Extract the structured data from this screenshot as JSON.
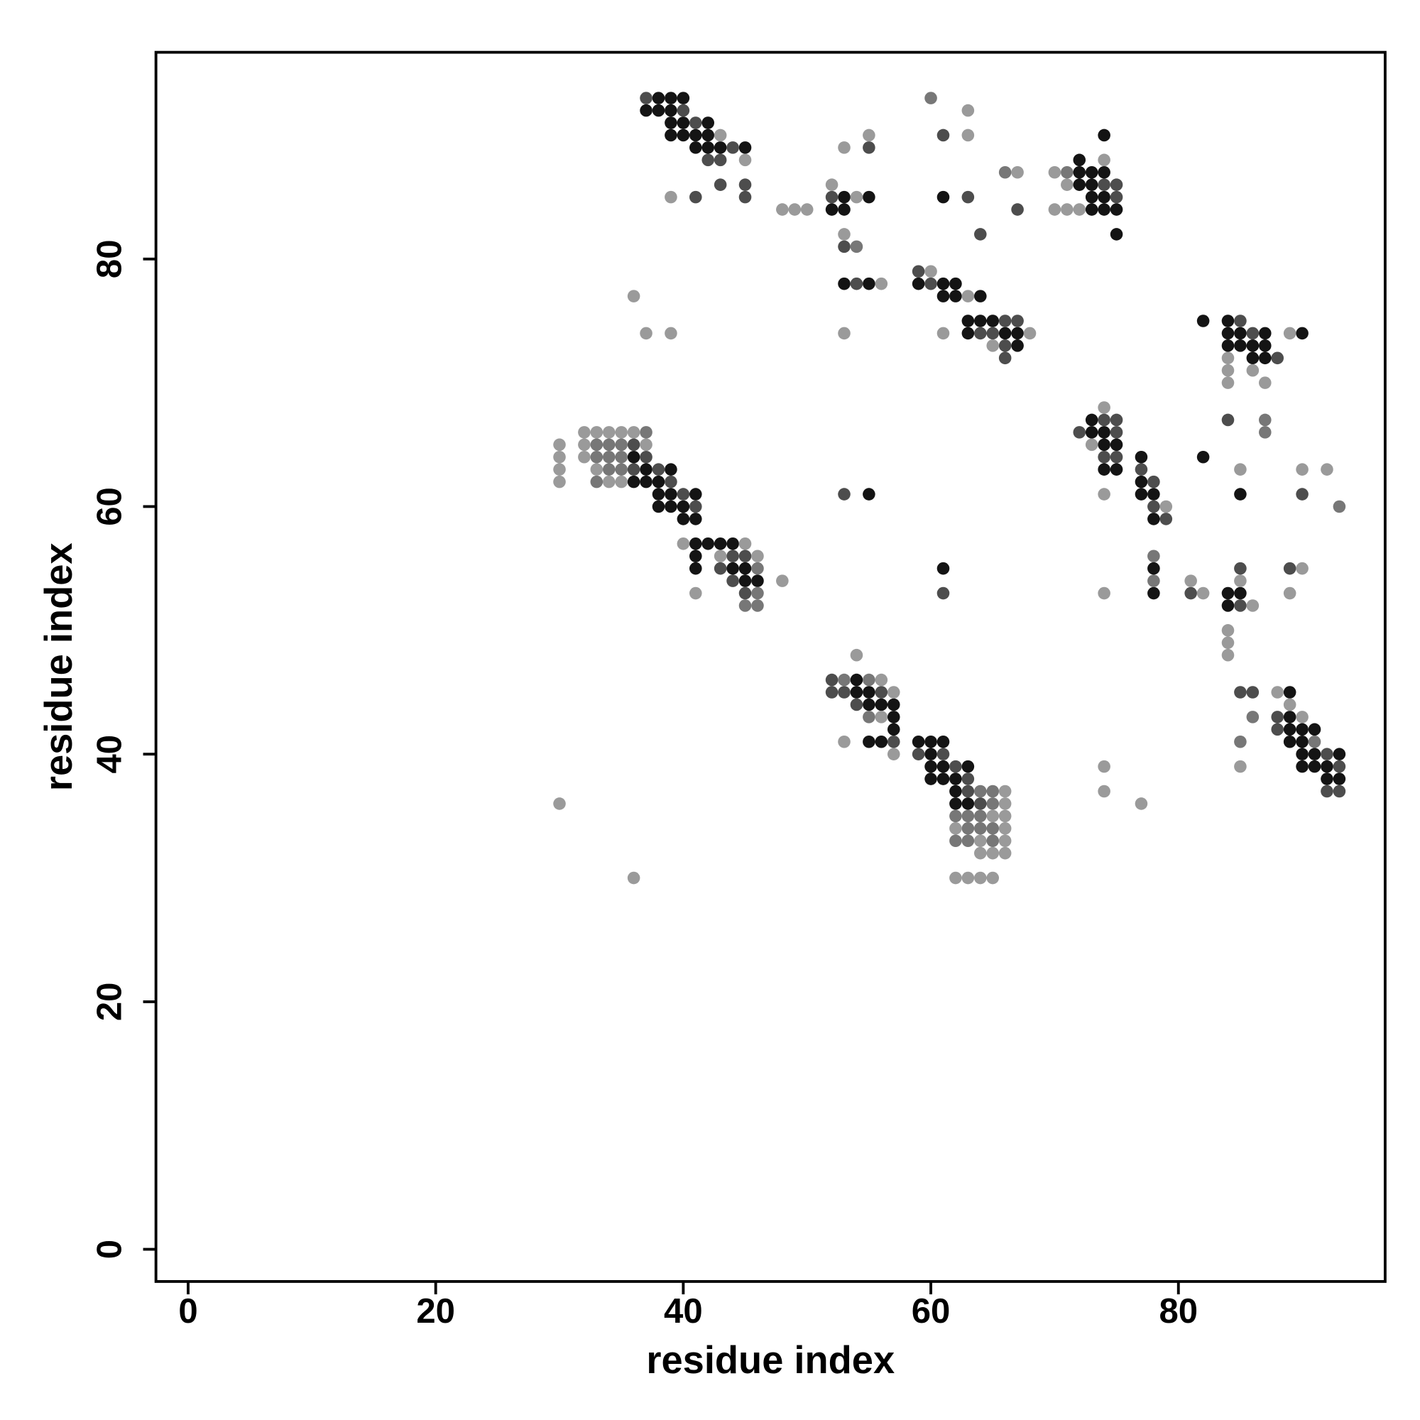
{
  "chart_data": {
    "type": "scatter",
    "xlabel": "residue index",
    "ylabel": "residue index",
    "xlim": [
      -2.6,
      96.7
    ],
    "ylim": [
      -2.6,
      96.7
    ],
    "xticks": [
      0,
      20,
      40,
      60,
      80
    ],
    "yticks": [
      0,
      20,
      40,
      60,
      80
    ],
    "grid": false,
    "series": [
      {
        "color": "#141414",
        "x": [
          38,
          39,
          40,
          37,
          38,
          39,
          39,
          40,
          42,
          39,
          40,
          41,
          42,
          41,
          42,
          43,
          45,
          52,
          53,
          53,
          55,
          53,
          55,
          61,
          59,
          61,
          62,
          61,
          62,
          64,
          63,
          64,
          65,
          63,
          66,
          67,
          67,
          72,
          74,
          72,
          73,
          74,
          72,
          73,
          73,
          74,
          73,
          74,
          75,
          75,
          82,
          84,
          84,
          85,
          87,
          90,
          84,
          85,
          86,
          87,
          86,
          87,
          82,
          85,
          73,
          73,
          74,
          74,
          75,
          77,
          74,
          75,
          77,
          77,
          78,
          78,
          78,
          78,
          84,
          85,
          84,
          36,
          37,
          39,
          36,
          37,
          38,
          38,
          39,
          41,
          38,
          39,
          40,
          40,
          41,
          41,
          42,
          43,
          44,
          41,
          41,
          44,
          45,
          45,
          46,
          55,
          61,
          54,
          54,
          55,
          55,
          56,
          57,
          57,
          57,
          55,
          56,
          59,
          60,
          61,
          60,
          60,
          61,
          63,
          60,
          61,
          62,
          62,
          62,
          63,
          89,
          89,
          89,
          90,
          91,
          89,
          90,
          90,
          91,
          93,
          90,
          91,
          92,
          92,
          93
        ],
        "values": [
          93,
          93,
          93,
          92,
          92,
          92,
          91,
          91,
          91,
          90,
          90,
          90,
          90,
          89,
          89,
          89,
          89,
          84,
          84,
          85,
          85,
          78,
          78,
          85,
          78,
          78,
          78,
          77,
          77,
          77,
          75,
          75,
          75,
          74,
          74,
          74,
          73,
          88,
          90,
          87,
          87,
          87,
          86,
          86,
          85,
          85,
          84,
          84,
          84,
          82,
          75,
          75,
          74,
          74,
          74,
          74,
          73,
          73,
          73,
          73,
          72,
          72,
          64,
          61,
          67,
          66,
          66,
          65,
          65,
          64,
          63,
          63,
          62,
          61,
          61,
          59,
          55,
          53,
          53,
          53,
          52,
          64,
          63,
          63,
          62,
          62,
          62,
          61,
          61,
          61,
          60,
          60,
          60,
          59,
          59,
          57,
          57,
          57,
          57,
          56,
          55,
          55,
          55,
          54,
          54,
          61,
          55,
          46,
          45,
          45,
          44,
          44,
          44,
          43,
          42,
          41,
          41,
          41,
          41,
          41,
          40,
          39,
          39,
          39,
          38,
          38,
          38,
          37,
          36,
          36,
          45,
          43,
          42,
          42,
          42,
          41,
          41,
          40,
          40,
          40,
          39,
          39,
          39,
          38,
          38
        ]
      },
      {
        "color": "#4d4d4d",
        "x": [
          37,
          40,
          41,
          44,
          42,
          43,
          43,
          45,
          41,
          45,
          52,
          55,
          53,
          54,
          61,
          63,
          64,
          67,
          59,
          60,
          66,
          67,
          64,
          65,
          66,
          66,
          74,
          75,
          75,
          85,
          86,
          88,
          84,
          90,
          74,
          75,
          72,
          75,
          74,
          75,
          77,
          78,
          78,
          79,
          81,
          85,
          89,
          85,
          36,
          37,
          36,
          38,
          39,
          40,
          41,
          44,
          45,
          43,
          44,
          45,
          53,
          61,
          52,
          52,
          53,
          56,
          54,
          57,
          59,
          61,
          62,
          63,
          63,
          64,
          85,
          86,
          88,
          88,
          92,
          93,
          92,
          93
        ],
        "values": [
          93,
          92,
          91,
          89,
          88,
          88,
          86,
          86,
          85,
          85,
          85,
          89,
          81,
          78,
          90,
          85,
          82,
          84,
          79,
          78,
          75,
          75,
          74,
          74,
          73,
          72,
          86,
          86,
          85,
          75,
          74,
          72,
          67,
          61,
          67,
          67,
          66,
          66,
          64,
          64,
          63,
          62,
          60,
          59,
          53,
          55,
          55,
          52,
          65,
          64,
          63,
          63,
          62,
          61,
          60,
          56,
          56,
          55,
          54,
          53,
          61,
          53,
          46,
          45,
          45,
          45,
          44,
          41,
          40,
          40,
          39,
          38,
          37,
          36,
          45,
          45,
          43,
          42,
          40,
          39,
          37,
          37
        ]
      },
      {
        "color": "#777777",
        "x": [
          60,
          66,
          71,
          54,
          87,
          87,
          37,
          33,
          34,
          35,
          33,
          34,
          35,
          34,
          35,
          33,
          93,
          78,
          78,
          46,
          46,
          45,
          46,
          53,
          55,
          55,
          85,
          86,
          91,
          64,
          65,
          65,
          62,
          63,
          64,
          63,
          64,
          65,
          62,
          63,
          65
        ],
        "values": [
          93,
          87,
          87,
          81,
          67,
          66,
          66,
          65,
          65,
          65,
          64,
          64,
          64,
          63,
          63,
          62,
          60,
          56,
          54,
          55,
          53,
          52,
          52,
          46,
          46,
          43,
          41,
          43,
          41,
          37,
          37,
          36,
          35,
          35,
          35,
          34,
          34,
          34,
          33,
          33,
          33
        ]
      },
      {
        "color": "#9a9a9a",
        "x": [
          43,
          45,
          39,
          48,
          49,
          50,
          52,
          53,
          55,
          54,
          53,
          56,
          37,
          39,
          53,
          36,
          63,
          63,
          67,
          60,
          63,
          61,
          68,
          65,
          74,
          70,
          71,
          70,
          71,
          72,
          89,
          84,
          84,
          86,
          84,
          87,
          85,
          90,
          92,
          74,
          73,
          74,
          79,
          81,
          82,
          74,
          89,
          85,
          86,
          90,
          84,
          84,
          84,
          32,
          33,
          34,
          35,
          36,
          30,
          32,
          37,
          30,
          32,
          30,
          33,
          30,
          34,
          35,
          40,
          45,
          43,
          46,
          48,
          41,
          54,
          56,
          57,
          56,
          53,
          57,
          66,
          66,
          65,
          66,
          62,
          66,
          64,
          66,
          64,
          65,
          66,
          62,
          63,
          64,
          65,
          30,
          36,
          74,
          74,
          77,
          88,
          89,
          90,
          85
        ],
        "values": [
          90,
          88,
          85,
          84,
          84,
          84,
          86,
          89,
          90,
          85,
          82,
          78,
          74,
          74,
          74,
          77,
          92,
          90,
          87,
          79,
          77,
          74,
          74,
          73,
          88,
          87,
          86,
          84,
          84,
          84,
          74,
          72,
          71,
          71,
          70,
          70,
          63,
          63,
          63,
          68,
          65,
          61,
          60,
          54,
          53,
          53,
          53,
          54,
          52,
          55,
          50,
          49,
          48,
          66,
          66,
          66,
          66,
          66,
          65,
          65,
          65,
          64,
          64,
          63,
          63,
          62,
          62,
          62,
          57,
          57,
          56,
          56,
          54,
          53,
          48,
          46,
          45,
          43,
          41,
          40,
          37,
          36,
          35,
          35,
          34,
          34,
          33,
          33,
          32,
          32,
          32,
          30,
          30,
          30,
          30,
          36,
          30,
          39,
          37,
          36,
          45,
          44,
          43,
          39
        ]
      }
    ]
  }
}
